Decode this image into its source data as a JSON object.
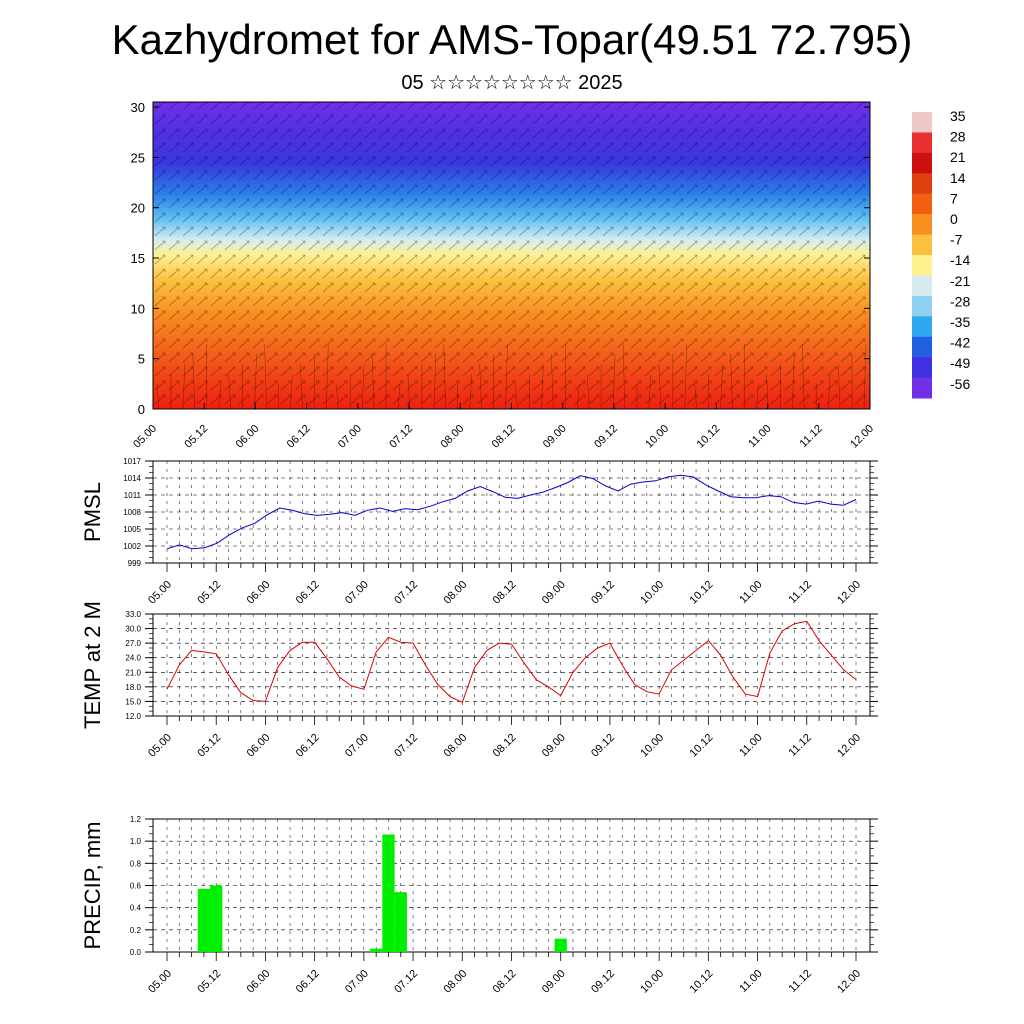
{
  "title": "Kazhydromet for AMS-Topar(49.51 72.795)",
  "subtitle": "05 ☆☆☆☆☆☆☆☆ 2025",
  "time_ticks": [
    "05.00",
    "05.12",
    "06.00",
    "06.12",
    "07.00",
    "07.12",
    "08.00",
    "08.12",
    "09.00",
    "09.12",
    "10.00",
    "10.12",
    "11.00",
    "11.12",
    "12.00"
  ],
  "chart_data": [
    {
      "type": "heatmap",
      "title": "",
      "xlabel": "",
      "ylabel": "",
      "x": [
        "05.00",
        "05.12",
        "06.00",
        "06.12",
        "07.00",
        "07.12",
        "08.00",
        "08.12",
        "09.00",
        "09.12",
        "10.00",
        "10.12",
        "11.00",
        "11.12",
        "12.00"
      ],
      "ylim": [
        0,
        30.5
      ],
      "yticks": [
        0,
        5,
        10,
        15,
        20,
        25,
        30
      ],
      "colorbar": {
        "labels": [
          "35",
          "28",
          "21",
          "14",
          "7",
          "0",
          "-7",
          "-14",
          "-21",
          "-28",
          "-35",
          "-42",
          "-49",
          "-56"
        ],
        "colors": [
          "#f0c8c8",
          "#e83030",
          "#cc1010",
          "#e04010",
          "#f06010",
          "#f89020",
          "#fcc040",
          "#fff090",
          "#d8ecf0",
          "#90d0f0",
          "#30a8f0",
          "#2060e0",
          "#4030e0",
          "#7030e8"
        ]
      },
      "levels": [
        {
          "altitude": 0,
          "value": 21
        },
        {
          "altitude": 5,
          "value": 14
        },
        {
          "altitude": 10,
          "value": 4
        },
        {
          "altitude": 15,
          "value": -9
        },
        {
          "altitude": 20,
          "value": -30
        },
        {
          "altitude": 25,
          "value": -52
        },
        {
          "altitude": 30,
          "value": -58
        }
      ]
    },
    {
      "type": "line",
      "ylabel": "PMSL",
      "ylim": [
        999,
        1017
      ],
      "yticks": [
        "999",
        "1002",
        "1005",
        "1008",
        "1011",
        "1014",
        "1017"
      ],
      "color": "#0000cc",
      "series": [
        {
          "values": [
            1001.5,
            1002.2,
            1001.5,
            1001.7,
            1002.5,
            1004.0,
            1005.2,
            1006.0,
            1007.5,
            1008.7,
            1008.3,
            1007.7,
            1007.4,
            1007.6,
            1007.9,
            1007.4,
            1008.3,
            1008.7,
            1008.1,
            1008.6,
            1008.4,
            1009.0,
            1009.8,
            1010.4,
            1011.7,
            1012.5,
            1011.6,
            1010.6,
            1010.4,
            1011.0,
            1011.5,
            1012.3,
            1013.2,
            1014.4,
            1013.9,
            1012.6,
            1011.7,
            1012.9,
            1013.3,
            1013.5,
            1014.2,
            1014.5,
            1014.2,
            1012.8,
            1011.7,
            1010.7,
            1010.5,
            1010.5,
            1010.9,
            1010.7,
            1009.7,
            1009.4,
            1009.9,
            1009.4,
            1009.2,
            1010.2
          ]
        }
      ]
    },
    {
      "type": "line",
      "ylabel": "TEMP at 2 M",
      "ylim": [
        12.0,
        33.0
      ],
      "yticks": [
        "12.0",
        "15.0",
        "18.0",
        "21.0",
        "24.0",
        "27.0",
        "30.0",
        "33.0"
      ],
      "color": "#dd0000",
      "series": [
        {
          "values": [
            17.5,
            22.5,
            25.5,
            25.2,
            24.8,
            20.5,
            16.8,
            15.2,
            15.0,
            22.0,
            25.5,
            27.2,
            27.2,
            23.8,
            20.0,
            18.2,
            17.5,
            25.2,
            28.2,
            27.2,
            27.0,
            22.5,
            18.5,
            16.0,
            14.8,
            22.0,
            25.5,
            27.0,
            26.8,
            23.0,
            19.5,
            18.0,
            16.2,
            21.0,
            24.0,
            26.0,
            27.0,
            22.5,
            18.5,
            17.0,
            16.5,
            21.5,
            23.5,
            25.5,
            27.5,
            24.5,
            20.0,
            16.5,
            16.0,
            25.0,
            29.5,
            31.0,
            31.5,
            27.5,
            24.5,
            21.5,
            19.5
          ]
        }
      ]
    },
    {
      "type": "bar",
      "ylabel": "PRECIP, mm",
      "ylim": [
        0.0,
        1.2
      ],
      "yticks": [
        "0.0",
        "0.2",
        "0.4",
        "0.6",
        "0.8",
        "1.0",
        "1.2"
      ],
      "color": "#00ee00",
      "bars": [
        {
          "x": "05.09",
          "value": 0.57
        },
        {
          "x": "05.12",
          "value": 0.6
        },
        {
          "x": "07.03",
          "value": 0.03
        },
        {
          "x": "07.06",
          "value": 1.06
        },
        {
          "x": "07.09",
          "value": 0.54
        },
        {
          "x": "09.00",
          "value": 0.12
        }
      ]
    }
  ]
}
